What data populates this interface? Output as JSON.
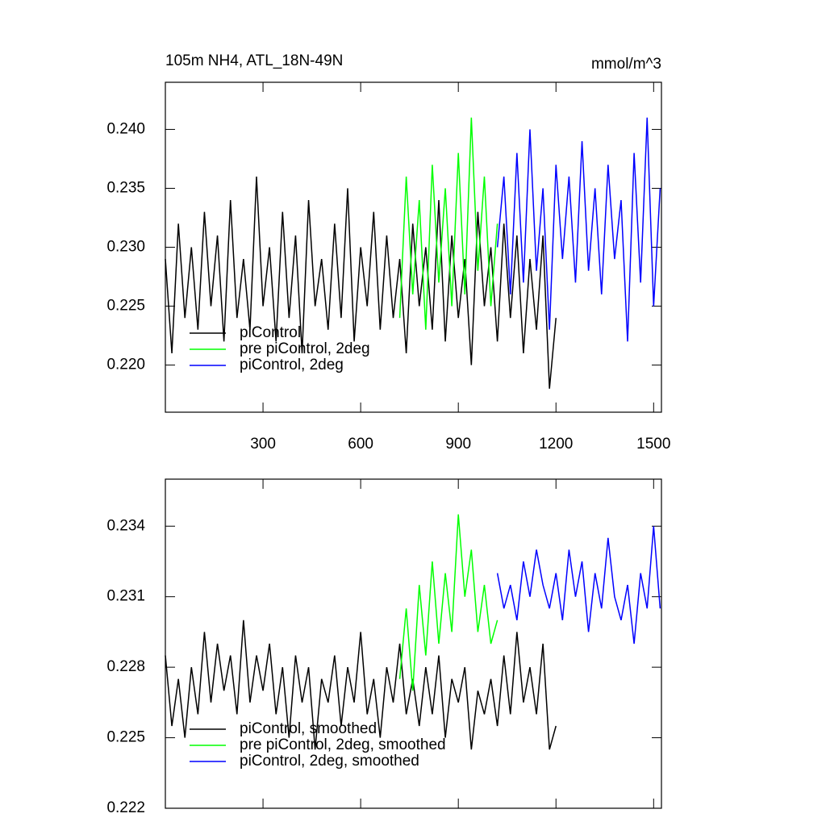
{
  "chart_data": [
    {
      "type": "line",
      "title": "105m NH4, ATL_18N-49N",
      "units": "mmol/m^3",
      "xlim": [
        0,
        1524
      ],
      "xticks": [
        300,
        600,
        900,
        1200,
        1500
      ],
      "xtick_labels": true,
      "ylim": [
        0.216,
        0.244
      ],
      "yticks": [
        {
          "value": 0.22,
          "label": "0.220"
        },
        0.225,
        {
          "value": 0.23,
          "label": "0.230"
        },
        0.235,
        {
          "value": 0.24,
          "label": "0.240"
        }
      ],
      "legend": "lower left",
      "series": [
        {
          "name": "piControl",
          "color": "#000000",
          "x": [
            0,
            20,
            40,
            60,
            80,
            100,
            120,
            140,
            160,
            180,
            200,
            220,
            240,
            260,
            280,
            300,
            320,
            340,
            360,
            380,
            400,
            420,
            440,
            460,
            480,
            500,
            520,
            540,
            560,
            580,
            600,
            620,
            640,
            660,
            680,
            700,
            720,
            740,
            760,
            780,
            800,
            820,
            840,
            860,
            880,
            900,
            920,
            940,
            960,
            980,
            1000,
            1020,
            1040,
            1060,
            1080,
            1100,
            1120,
            1140,
            1160,
            1180,
            1200
          ],
          "values": [
            0.229,
            0.221,
            0.232,
            0.224,
            0.23,
            0.223,
            0.233,
            0.225,
            0.231,
            0.222,
            0.234,
            0.224,
            0.229,
            0.223,
            0.236,
            0.225,
            0.23,
            0.222,
            0.233,
            0.224,
            0.231,
            0.221,
            0.234,
            0.225,
            0.229,
            0.223,
            0.232,
            0.224,
            0.235,
            0.222,
            0.23,
            0.225,
            0.233,
            0.223,
            0.231,
            0.224,
            0.229,
            0.221,
            0.232,
            0.225,
            0.23,
            0.223,
            0.234,
            0.222,
            0.231,
            0.224,
            0.229,
            0.22,
            0.233,
            0.225,
            0.23,
            0.222,
            0.232,
            0.224,
            0.231,
            0.221,
            0.229,
            0.223,
            0.231,
            0.218,
            0.224
          ]
        },
        {
          "name": "pre piControl, 2deg",
          "color": "#00ff00",
          "x": [
            720,
            740,
            760,
            780,
            800,
            820,
            840,
            860,
            880,
            900,
            920,
            940,
            960,
            980,
            1000,
            1020
          ],
          "values": [
            0.224,
            0.236,
            0.226,
            0.234,
            0.223,
            0.237,
            0.227,
            0.235,
            0.225,
            0.238,
            0.226,
            0.241,
            0.228,
            0.236,
            0.225,
            0.232
          ]
        },
        {
          "name": "piControl, 2deg",
          "color": "#0000ff",
          "x": [
            1020,
            1040,
            1060,
            1080,
            1100,
            1120,
            1140,
            1160,
            1180,
            1200,
            1220,
            1240,
            1260,
            1280,
            1300,
            1320,
            1340,
            1360,
            1380,
            1400,
            1420,
            1440,
            1460,
            1480,
            1500,
            1520
          ],
          "values": [
            0.23,
            0.236,
            0.226,
            0.238,
            0.227,
            0.24,
            0.228,
            0.235,
            0.223,
            0.237,
            0.229,
            0.236,
            0.227,
            0.239,
            0.228,
            0.235,
            0.226,
            0.237,
            0.229,
            0.234,
            0.222,
            0.238,
            0.227,
            0.241,
            0.225,
            0.235
          ]
        }
      ]
    },
    {
      "type": "line",
      "xlim": [
        0,
        1524
      ],
      "xticks": [
        300,
        600,
        900,
        1200,
        1500
      ],
      "xtick_labels": false,
      "ylim": [
        0.222,
        0.236
      ],
      "yticks": [
        0.222,
        0.225,
        0.228,
        0.231,
        0.234
      ],
      "legend": "lower left",
      "series": [
        {
          "name": "piControl, smoothed",
          "color": "#000000",
          "x": [
            0,
            20,
            40,
            60,
            80,
            100,
            120,
            140,
            160,
            180,
            200,
            220,
            240,
            260,
            280,
            300,
            320,
            340,
            360,
            380,
            400,
            420,
            440,
            460,
            480,
            500,
            520,
            540,
            560,
            580,
            600,
            620,
            640,
            660,
            680,
            700,
            720,
            740,
            760,
            780,
            800,
            820,
            840,
            860,
            880,
            900,
            920,
            940,
            960,
            980,
            1000,
            1020,
            1040,
            1060,
            1080,
            1100,
            1120,
            1140,
            1160,
            1180,
            1200
          ],
          "values": [
            0.2285,
            0.2255,
            0.2275,
            0.225,
            0.228,
            0.226,
            0.2295,
            0.2265,
            0.229,
            0.227,
            0.2285,
            0.226,
            0.23,
            0.2265,
            0.2285,
            0.227,
            0.229,
            0.226,
            0.228,
            0.225,
            0.2285,
            0.2265,
            0.228,
            0.2245,
            0.2275,
            0.2265,
            0.2285,
            0.2255,
            0.228,
            0.2265,
            0.2295,
            0.226,
            0.2275,
            0.225,
            0.228,
            0.2265,
            0.229,
            0.226,
            0.2275,
            0.2255,
            0.228,
            0.226,
            0.2285,
            0.225,
            0.2275,
            0.2265,
            0.228,
            0.2245,
            0.227,
            0.226,
            0.2275,
            0.2255,
            0.2285,
            0.226,
            0.2295,
            0.2265,
            0.228,
            0.226,
            0.229,
            0.2245,
            0.2255
          ]
        },
        {
          "name": "pre piControl, 2deg, smoothed",
          "color": "#00ff00",
          "x": [
            720,
            740,
            760,
            780,
            800,
            820,
            840,
            860,
            880,
            900,
            920,
            940,
            960,
            980,
            1000,
            1020
          ],
          "values": [
            0.2275,
            0.2305,
            0.227,
            0.2315,
            0.2285,
            0.2325,
            0.229,
            0.232,
            0.2295,
            0.2345,
            0.231,
            0.233,
            0.2295,
            0.2315,
            0.229,
            0.23
          ]
        },
        {
          "name": "piControl, 2deg, smoothed",
          "color": "#0000ff",
          "x": [
            1020,
            1040,
            1060,
            1080,
            1100,
            1120,
            1140,
            1160,
            1180,
            1200,
            1220,
            1240,
            1260,
            1280,
            1300,
            1320,
            1340,
            1360,
            1380,
            1400,
            1420,
            1440,
            1460,
            1480,
            1500,
            1520
          ],
          "values": [
            0.232,
            0.2305,
            0.2315,
            0.23,
            0.2325,
            0.231,
            0.233,
            0.2315,
            0.2305,
            0.232,
            0.23,
            0.233,
            0.231,
            0.2325,
            0.2295,
            0.232,
            0.2305,
            0.2335,
            0.231,
            0.23,
            0.2315,
            0.229,
            0.232,
            0.2305,
            0.234,
            0.2305
          ]
        }
      ]
    }
  ]
}
